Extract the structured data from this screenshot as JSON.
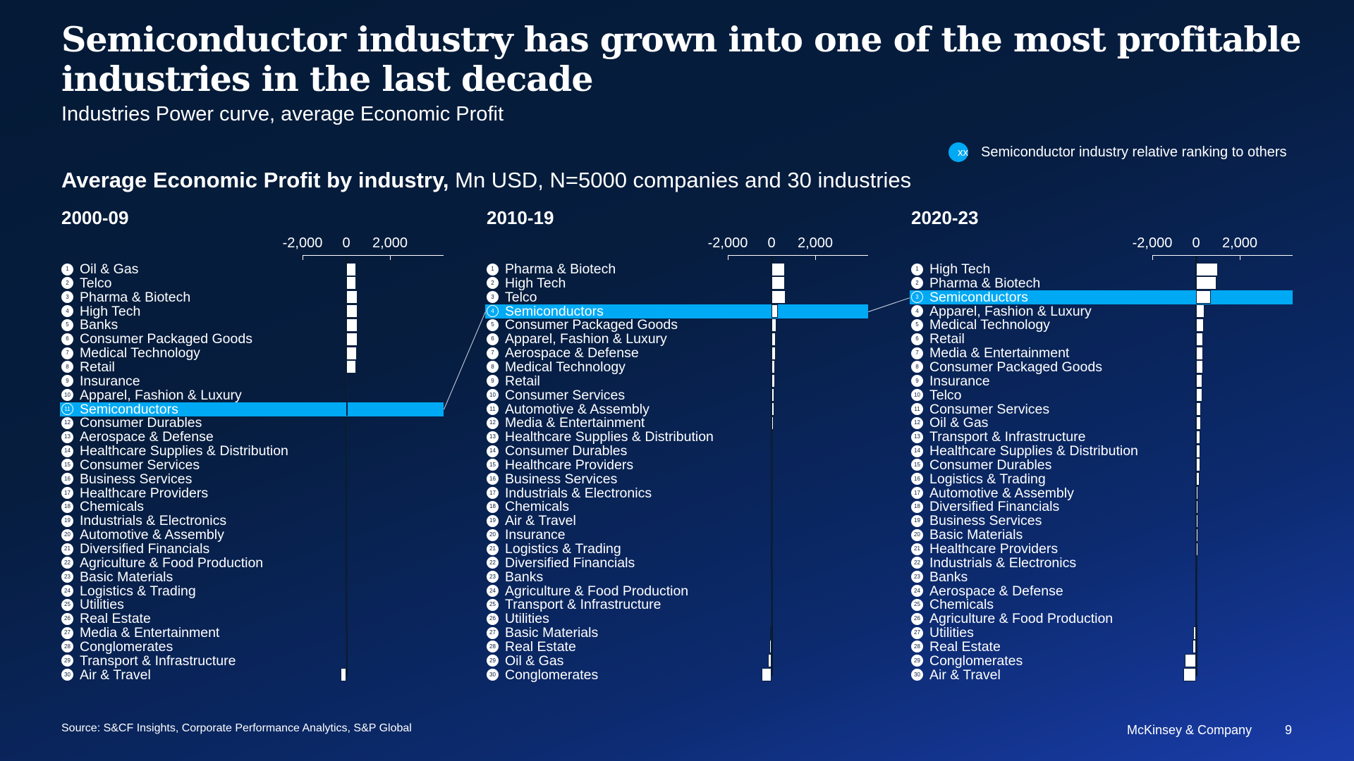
{
  "title": "Semiconductor industry has grown into one of the most profitable industries in the last decade",
  "subtitle": "Industries Power curve, average Economic Profit",
  "legend": {
    "marker": "xx",
    "label": "Semiconductor industry relative ranking to others"
  },
  "section": {
    "bold": "Average Economic Profit by industry,",
    "rest": " Mn USD, N=5000 companies and 30 industries"
  },
  "colors": {
    "highlight": "#00a9f4",
    "bar": "#ffffff"
  },
  "chart_data": [
    {
      "type": "bar",
      "title": "2000-09",
      "xticks": [
        "-2,000",
        "0",
        "2,000"
      ],
      "xlim": [
        -2000,
        4500
      ],
      "highlight": "Semiconductors",
      "categories": [
        "Oil & Gas",
        "Telco",
        "Pharma & Biotech",
        "High Tech",
        "Banks",
        "Consumer Packaged Goods",
        "Medical Technology",
        "Retail",
        "Insurance",
        "Apparel, Fashion & Luxury",
        "Semiconductors",
        "Consumer Durables",
        "Aerospace & Defense",
        "Healthcare Supplies & Distribution",
        "Consumer Services",
        "Business Services",
        "Healthcare Providers",
        "Chemicals",
        "Industrials & Electronics",
        "Automotive & Assembly",
        "Diversified Financials",
        "Agriculture & Food Production",
        "Basic Materials",
        "Logistics & Trading",
        "Utilities",
        "Real Estate",
        "Media & Entertainment",
        "Conglomerates",
        "Transport & Infrastructure",
        "Air & Travel"
      ],
      "values": [
        450,
        450,
        500,
        500,
        520,
        500,
        480,
        450,
        30,
        25,
        20,
        15,
        12,
        10,
        10,
        8,
        8,
        6,
        5,
        5,
        4,
        3,
        2,
        2,
        1,
        0,
        -5,
        -10,
        -20,
        -250
      ]
    },
    {
      "type": "bar",
      "title": "2010-19",
      "xticks": [
        "-2,000",
        "0",
        "2,000"
      ],
      "xlim": [
        -2000,
        4500
      ],
      "highlight": "Semiconductors",
      "categories": [
        "Pharma & Biotech",
        "High Tech",
        "Telco",
        "Semiconductors",
        "Consumer Packaged Goods",
        "Apparel, Fashion & Luxury",
        "Aerospace & Defense",
        "Medical Technology",
        "Retail",
        "Consumer Services",
        "Automotive & Assembly",
        "Media & Entertainment",
        "Healthcare Supplies & Distribution",
        "Consumer Durables",
        "Healthcare Providers",
        "Business Services",
        "Industrials & Electronics",
        "Chemicals",
        "Air & Travel",
        "Insurance",
        "Logistics & Trading",
        "Diversified Financials",
        "Banks",
        "Agriculture & Food Production",
        "Transport & Infrastructure",
        "Utilities",
        "Basic Materials",
        "Real Estate",
        "Oil & Gas",
        "Conglomerates"
      ],
      "values": [
        620,
        620,
        640,
        300,
        220,
        200,
        200,
        150,
        150,
        130,
        130,
        100,
        80,
        80,
        60,
        40,
        30,
        30,
        20,
        10,
        5,
        0,
        -10,
        -20,
        -30,
        -40,
        -60,
        -100,
        -150,
        -450
      ]
    },
    {
      "type": "bar",
      "title": "2020-23",
      "xticks": [
        "-2,000",
        "0",
        "2,000"
      ],
      "xlim": [
        -2000,
        4500
      ],
      "highlight": "Semiconductors",
      "categories": [
        "High Tech",
        "Pharma & Biotech",
        "Semiconductors",
        "Apparel, Fashion & Luxury",
        "Medical Technology",
        "Retail",
        "Media & Entertainment",
        "Consumer Packaged Goods",
        "Insurance",
        "Telco",
        "Consumer Services",
        "Oil & Gas",
        "Transport & Infrastructure",
        "Healthcare Supplies & Distribution",
        "Consumer Durables",
        "Logistics & Trading",
        "Automotive & Assembly",
        "Diversified Financials",
        "Business Services",
        "Basic Materials",
        "Healthcare Providers",
        "Industrials & Electronics",
        "Banks",
        "Aerospace & Defense",
        "Chemicals",
        "Agriculture & Food Production",
        "Utilities",
        "Real Estate",
        "Conglomerates",
        "Air & Travel"
      ],
      "values": [
        1000,
        930,
        680,
        380,
        350,
        320,
        320,
        320,
        280,
        280,
        220,
        220,
        190,
        190,
        190,
        150,
        100,
        100,
        100,
        100,
        100,
        60,
        60,
        30,
        20,
        10,
        -130,
        -160,
        -520,
        -580
      ]
    }
  ],
  "footer": {
    "source": "Source: S&CF Insights, Corporate Performance Analytics, S&P Global",
    "brand": "McKinsey & Company",
    "page": "9"
  }
}
